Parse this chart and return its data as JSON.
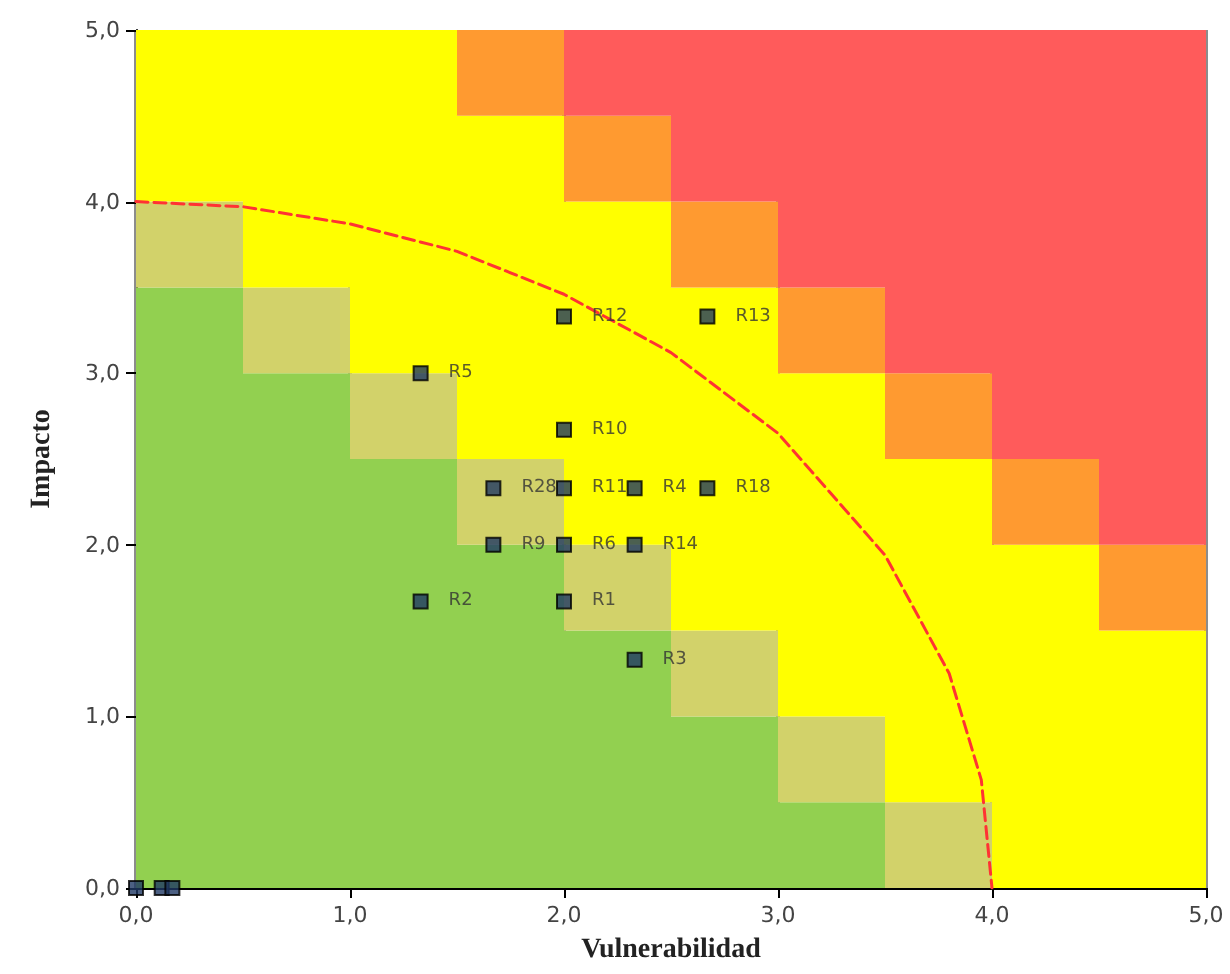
{
  "chart_data": {
    "type": "scatter",
    "xlabel": "Vulnerabilidad",
    "ylabel": "Impacto",
    "xlim": [
      0,
      5
    ],
    "ylim": [
      0,
      5
    ],
    "xticks": [
      {
        "value": 0,
        "label": "0,0"
      },
      {
        "value": 1,
        "label": "1,0"
      },
      {
        "value": 2,
        "label": "2,0"
      },
      {
        "value": 3,
        "label": "3,0"
      },
      {
        "value": 4,
        "label": "4,0"
      },
      {
        "value": 5,
        "label": "5,0"
      }
    ],
    "yticks": [
      {
        "value": 0,
        "label": "0,0"
      },
      {
        "value": 1,
        "label": "1,0"
      },
      {
        "value": 2,
        "label": "2,0"
      },
      {
        "value": 3,
        "label": "3,0"
      },
      {
        "value": 4,
        "label": "4,0"
      },
      {
        "value": 5,
        "label": "5,0"
      }
    ],
    "grid": "x",
    "marker": "square",
    "stacked": true,
    "series": [
      {
        "type": "bar",
        "color": "#92d050",
        "x": [
          0.25,
          0.75,
          1.25,
          1.75,
          2.25,
          2.75,
          3.25,
          3.75,
          4.25,
          4.75
        ],
        "values": [
          3.5,
          3,
          2.5,
          2,
          1.5,
          1,
          0.5,
          0,
          0,
          0
        ]
      },
      {
        "type": "bar",
        "color": "#d2d26a",
        "x": [
          0.25,
          0.75,
          1.25,
          1.75,
          2.25,
          2.75,
          3.25,
          3.75,
          4.25,
          4.75
        ],
        "values": [
          0.5,
          0.5,
          0.5,
          0.5,
          0.5,
          0.5,
          0.5,
          0.5,
          0,
          0
        ]
      },
      {
        "type": "bar",
        "color": "#ffff00",
        "x": [
          0.25,
          0.75,
          1.25,
          1.75,
          2.25,
          2.75,
          3.25,
          3.75,
          4.25,
          4.75
        ],
        "values": [
          1,
          1.5,
          2,
          2,
          2,
          2,
          2,
          2,
          2,
          1.5
        ]
      },
      {
        "type": "bar",
        "color": "#ff9a30",
        "x": [
          0.25,
          0.75,
          1.25,
          1.75,
          2.25,
          2.75,
          3.25,
          3.75,
          4.25,
          4.75
        ],
        "values": [
          0,
          0,
          0,
          0.5,
          0.5,
          0.5,
          0.5,
          0.5,
          0.5,
          0.5
        ]
      },
      {
        "type": "bar",
        "color": "#ff5b5b",
        "x": [
          0.25,
          0.75,
          1.25,
          1.75,
          2.25,
          2.75,
          3.25,
          3.75,
          4.25,
          4.75
        ],
        "values": [
          0,
          0,
          0,
          0,
          0.5,
          1,
          1.5,
          2,
          2.5,
          3
        ]
      },
      {
        "color": "#1f3864",
        "x": [
          1.33,
          2.0,
          2.67,
          2.0,
          1.67,
          2.0,
          2.33,
          2.67,
          1.67,
          2.0,
          2.33,
          1.33,
          2.0,
          2.33,
          0,
          0.12,
          0.17
        ],
        "values": [
          3.0,
          3.33,
          3.33,
          2.67,
          2.33,
          2.33,
          2.33,
          2.33,
          2.0,
          2.0,
          2.0,
          1.67,
          1.67,
          1.33,
          0,
          0,
          0
        ]
      },
      {
        "type": "line",
        "color": "#ff3333",
        "line_style": "dashed",
        "marker": "none",
        "x": [
          0,
          0.5,
          1,
          1.5,
          2,
          2.5,
          3,
          3.5,
          3.8,
          3.95,
          4
        ],
        "values": [
          4,
          3.97,
          3.87,
          3.71,
          3.46,
          3.12,
          2.65,
          1.94,
          1.25,
          0.63,
          0
        ]
      }
    ],
    "annotations": [
      {
        "text": "R5",
        "x": 1.33,
        "y": 3.0
      },
      {
        "text": "R12",
        "x": 2.0,
        "y": 3.33
      },
      {
        "text": "R13",
        "x": 2.67,
        "y": 3.33
      },
      {
        "text": "R10",
        "x": 2.0,
        "y": 2.67
      },
      {
        "text": "R28",
        "x": 1.67,
        "y": 2.33
      },
      {
        "text": "R11",
        "x": 2.0,
        "y": 2.33
      },
      {
        "text": "R4",
        "x": 2.33,
        "y": 2.33
      },
      {
        "text": "R18",
        "x": 2.67,
        "y": 2.33
      },
      {
        "text": "R9",
        "x": 1.67,
        "y": 2.0
      },
      {
        "text": "R6",
        "x": 2.0,
        "y": 2.0
      },
      {
        "text": "R14",
        "x": 2.33,
        "y": 2.0
      },
      {
        "text": "R2",
        "x": 1.33,
        "y": 1.67
      },
      {
        "text": "R1",
        "x": 2.0,
        "y": 1.67
      },
      {
        "text": "R3",
        "x": 2.33,
        "y": 1.33
      }
    ]
  }
}
